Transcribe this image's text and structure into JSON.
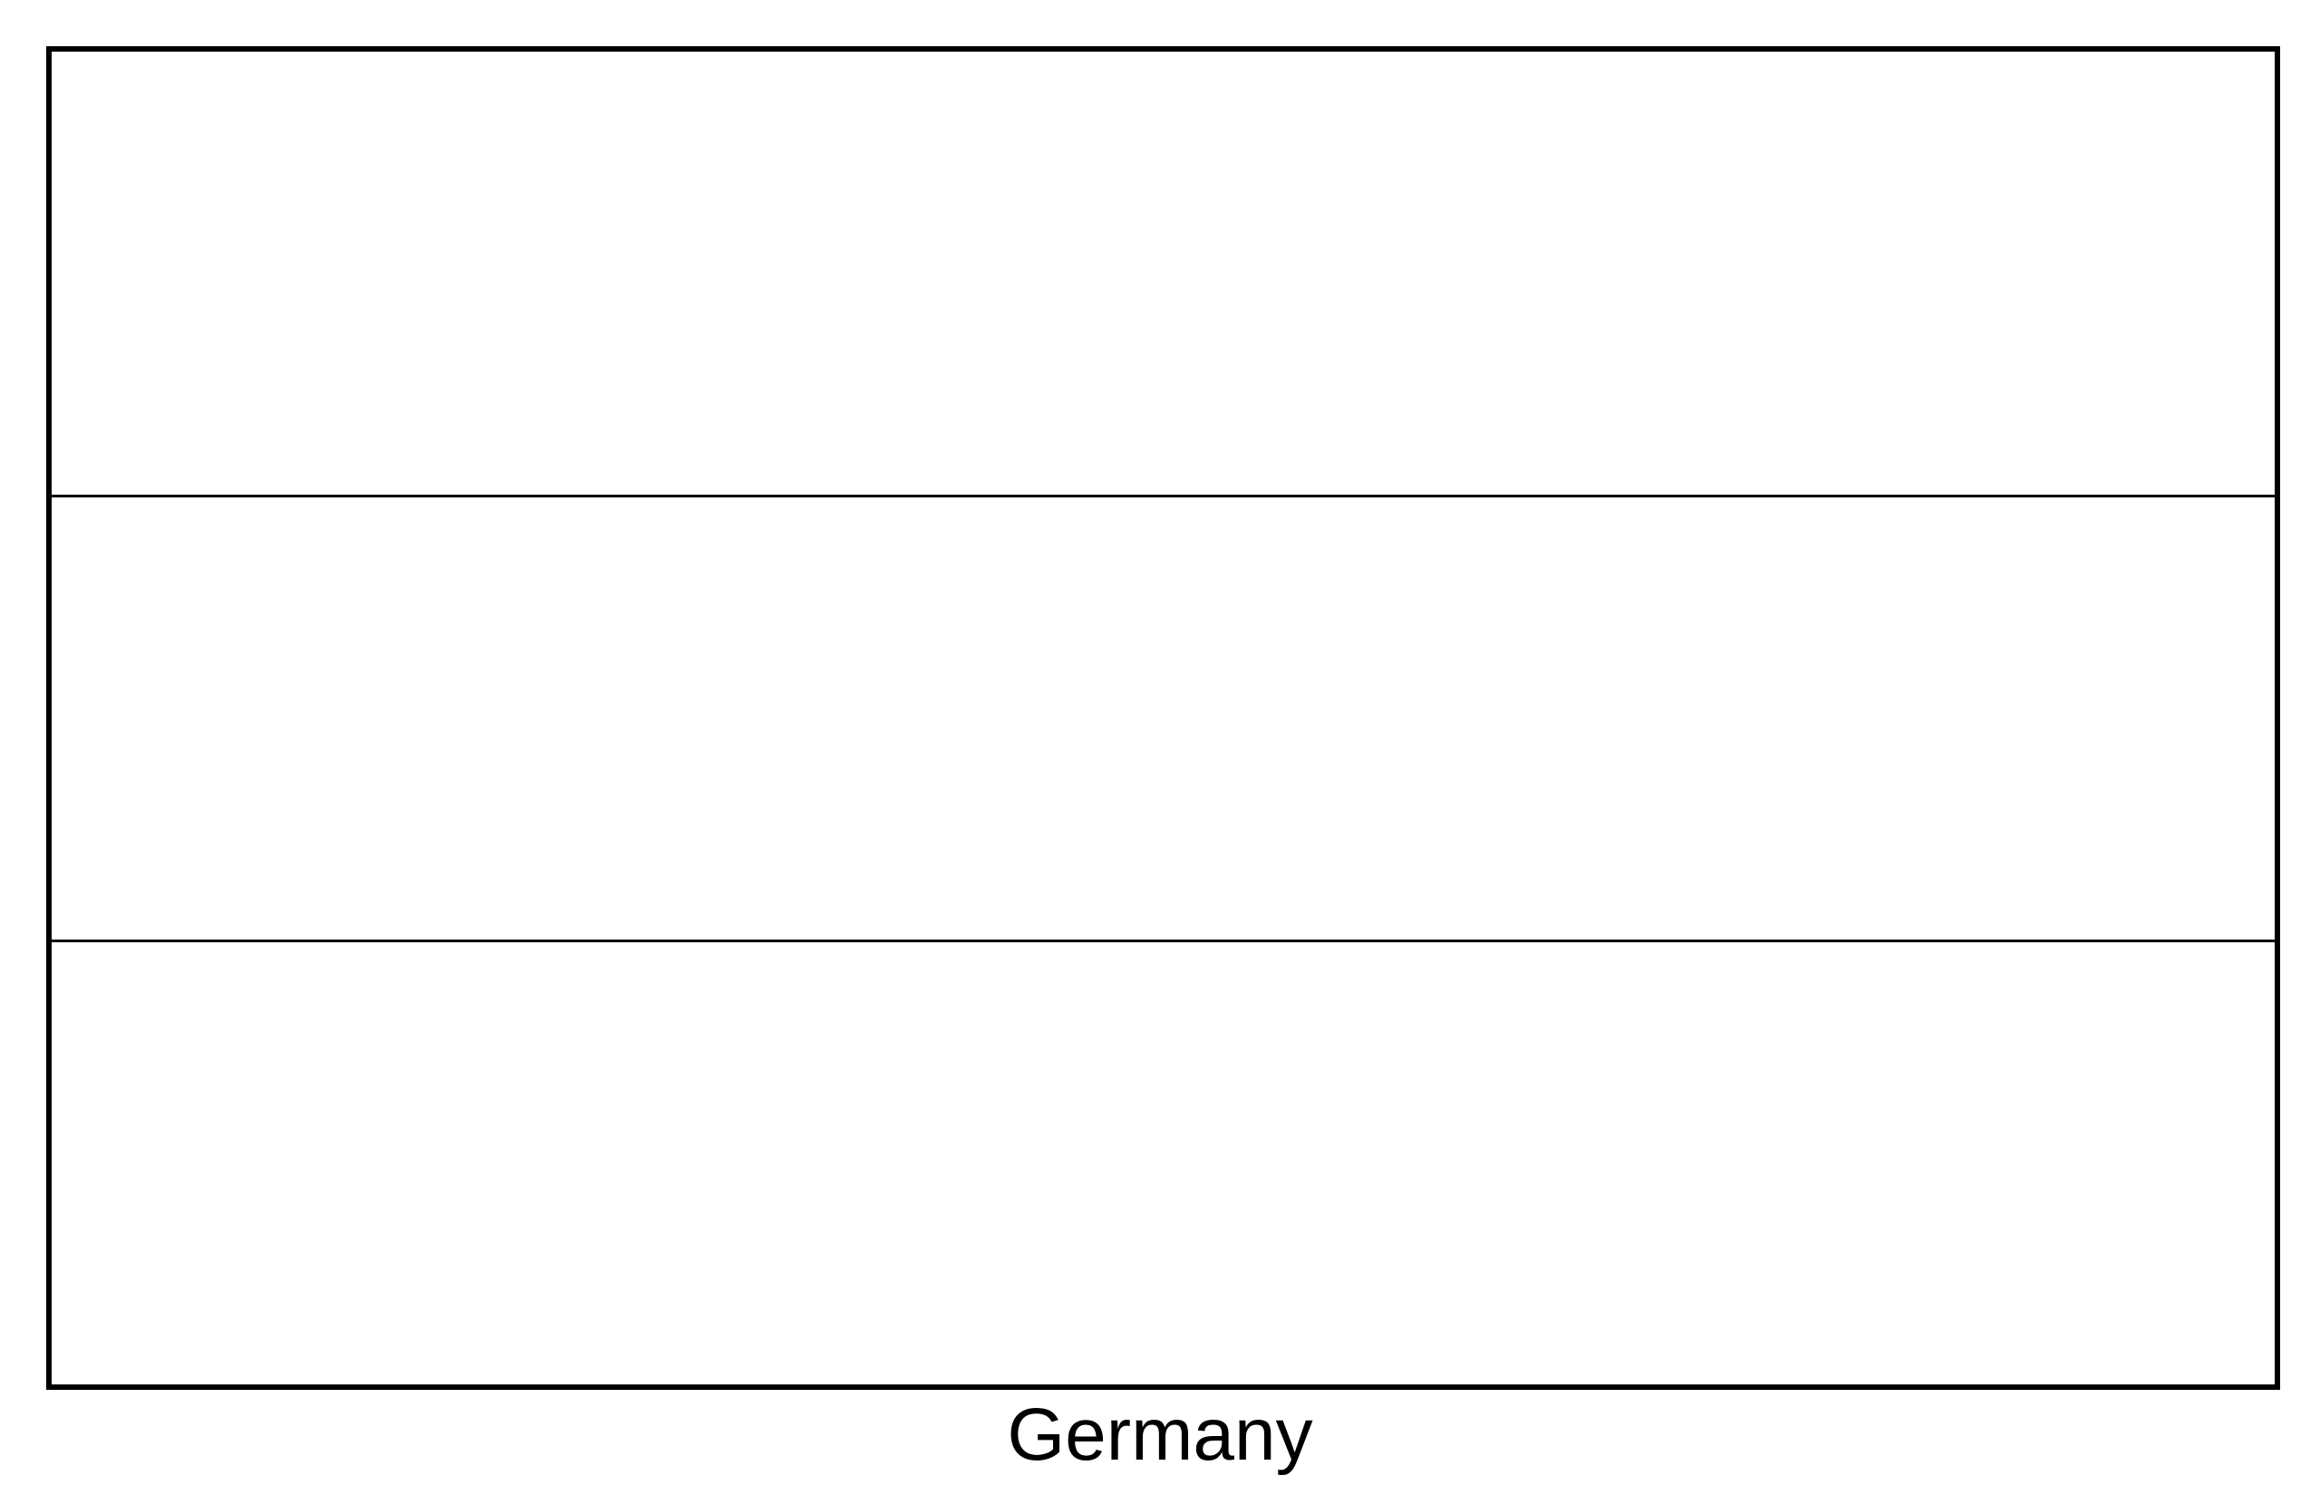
{
  "caption": "Germany",
  "flag": {
    "stripes": 3,
    "fill_color": "#ffffff",
    "outline_color": "#000000"
  }
}
